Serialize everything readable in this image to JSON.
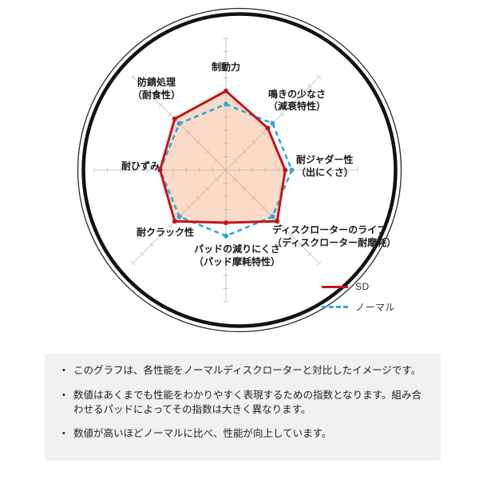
{
  "chart_data": {
    "type": "radar",
    "title": "",
    "axes": [
      {
        "id": "braking-power",
        "label_lines": [
          "制動力"
        ]
      },
      {
        "id": "quietness",
        "label_lines": [
          "鳴きの少なさ",
          "（減衰特性）"
        ]
      },
      {
        "id": "judder-resistance",
        "label_lines": [
          "耐ジャダー性",
          "（出にくさ）"
        ]
      },
      {
        "id": "rotor-life",
        "label_lines": [
          "ディスクローターのライフ",
          "（ディスクローター耐摩耗）"
        ]
      },
      {
        "id": "pad-wear",
        "label_lines": [
          "パッドの減りにくさ",
          "（パッド摩耗特性）"
        ]
      },
      {
        "id": "crack-resistance",
        "label_lines": [
          "耐クラック性"
        ]
      },
      {
        "id": "strain-resistance",
        "label_lines": [
          "耐ひずみ"
        ]
      },
      {
        "id": "rust-proofing",
        "label_lines": [
          "防錆処理",
          "（耐食性）"
        ]
      }
    ],
    "series": [
      {
        "name": "SD",
        "values": [
          6,
          4.5,
          4.5,
          5.5,
          4,
          5.5,
          5,
          5.5
        ],
        "color": "#c3161c",
        "style": "solid",
        "fill_color": "#f29e6e",
        "fill_opacity": 0.38
      },
      {
        "name": "ノーマル",
        "values": [
          5,
          5,
          5,
          5,
          5,
          5,
          5,
          5
        ],
        "color": "#2ba9de",
        "style": "dashed"
      }
    ],
    "scale": {
      "min": 0,
      "max": 10,
      "tick_interval": 1
    },
    "grid": {
      "ray_color": "#c9c9c9",
      "outer_ring_color": "#111111"
    },
    "legend_position": "bottom-right"
  },
  "legend": {
    "items": [
      {
        "label": "SD"
      },
      {
        "label": "ノーマル"
      }
    ]
  },
  "notes_bullet": "•",
  "notes": [
    "このグラフは、各性能をノーマルディスクローターと対比したイメージです。",
    "数値はあくまでも性能をわかりやすく表現するための指数となります。組み合わせるパッドによってその指数は大きく異なります。",
    "数値が高いほどノーマルに比べ、性能が向上しています。"
  ]
}
